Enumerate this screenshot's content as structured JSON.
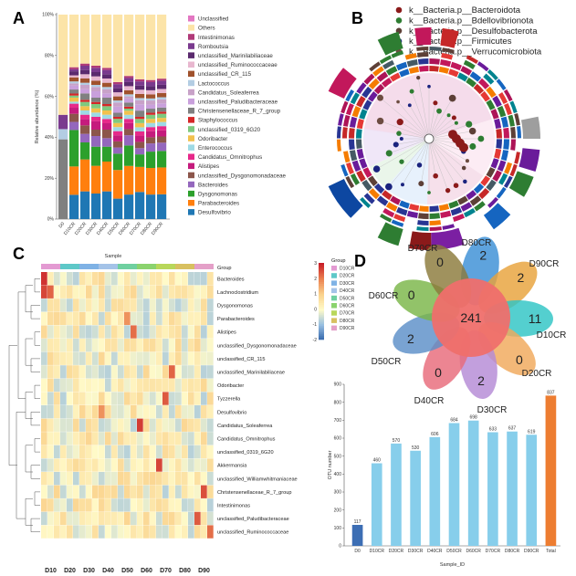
{
  "panels": {
    "a": "A",
    "b": "B",
    "c": "C",
    "d": "D"
  },
  "panel_a": {
    "y_label": "Relative abundance (%)",
    "x_label": "Sample",
    "y_ticks": [
      "0%",
      "20%",
      "40%",
      "60%",
      "80%",
      "100%"
    ],
    "samples": [
      "D0",
      "D10CR",
      "D20CR",
      "D30CR",
      "D40CR",
      "D50CR",
      "D60CR",
      "D70CR",
      "D80CR",
      "D90CR"
    ],
    "legend": [
      {
        "name": "Unclassified",
        "color": "#e377c2"
      },
      {
        "name": "Others",
        "color": "#fce4a8"
      },
      {
        "name": "Intestinimonas",
        "color": "#b03a78"
      },
      {
        "name": "Romboutsia",
        "color": "#7a3a8e"
      },
      {
        "name": "unclassified_Marinilabiliaceae",
        "color": "#5b2a6e"
      },
      {
        "name": "unclassified_Ruminococcaceae",
        "color": "#e8b7cf"
      },
      {
        "name": "unclassified_CR_115",
        "color": "#a0522d"
      },
      {
        "name": "Lactococcus",
        "color": "#b3cde3"
      },
      {
        "name": "Candidatus_Soleaferrea",
        "color": "#c8a2c8"
      },
      {
        "name": "unclassified_Paludibacteraceae",
        "color": "#c9a0dc"
      },
      {
        "name": "Christensenellaceae_R_7_group",
        "color": "#808080"
      },
      {
        "name": "Staphylococcus",
        "color": "#d62728"
      },
      {
        "name": "unclassified_0319_6G20",
        "color": "#7fc97f"
      },
      {
        "name": "Odoribacter",
        "color": "#f2c14e"
      },
      {
        "name": "Enterococcus",
        "color": "#9edae5"
      },
      {
        "name": "Candidatus_Omnitrophus",
        "color": "#e7298a"
      },
      {
        "name": "Alistipes",
        "color": "#c51b7d"
      },
      {
        "name": "unclassified_Dysgonomonadaceae",
        "color": "#8c564b"
      },
      {
        "name": "Bacteroides",
        "color": "#9467bd"
      },
      {
        "name": "Dysgonomonas",
        "color": "#2ca02c"
      },
      {
        "name": "Parabacteroides",
        "color": "#ff7f0e"
      },
      {
        "name": "Desulfovibrio",
        "color": "#1f77b4"
      }
    ]
  },
  "panel_b": {
    "legend": [
      {
        "name": "k__Bacteria.p__Bacteroidota",
        "color": "#8b1a1a"
      },
      {
        "name": "k__Bacteria.p__Bdellovibrionota",
        "color": "#2e7d32"
      },
      {
        "name": "k__Bacteria.p__Desulfobacterota",
        "color": "#5d4037"
      },
      {
        "name": "k__Bacteria.p__Firmicutes",
        "color": "#1a237e"
      },
      {
        "name": "k__Bacteria.p__Verrucomicrobiota",
        "color": "#6d4c41"
      }
    ]
  },
  "panel_c": {
    "legend_title": "Group",
    "row_labels": [
      "Bacteroides",
      "Lachnoclostridium",
      "Dysgonomonas",
      "Parabacteroides",
      "Alistipes",
      "unclassified_Dysgonomonadaceae",
      "unclassified_CR_115",
      "unclassified_Marinilabiliaceae",
      "Odoribacter",
      "Tyzzerella",
      "Desulfovibrio",
      "Candidatus_Soleaferrea",
      "Candidatus_Omnitrophus",
      "unclassified_0319_6G20",
      "Akkermansia",
      "unclassified_Williamwhitmaniaceae",
      "Christensenellaceae_R_7_group",
      "Intestinimonas",
      "unclassified_Paludibacteraceae",
      "unclassified_Ruminococcaceae"
    ],
    "group_labels": [
      "D10",
      "D20",
      "D30",
      "D40",
      "D50",
      "D60",
      "D70",
      "D80",
      "D90"
    ],
    "groups": [
      {
        "name": "D10CR",
        "color": "#e39ad2"
      },
      {
        "name": "D20CR",
        "color": "#5ec8c8"
      },
      {
        "name": "D30CR",
        "color": "#7fb2e5"
      },
      {
        "name": "D40CR",
        "color": "#a4c3e8"
      },
      {
        "name": "D50CR",
        "color": "#6fd0a0"
      },
      {
        "name": "D60CR",
        "color": "#8bd36e"
      },
      {
        "name": "D70CR",
        "color": "#b8d75a"
      },
      {
        "name": "D80CR",
        "color": "#d8c060"
      },
      {
        "name": "D90CR",
        "color": "#e4a0c8"
      }
    ],
    "scale_ticks": [
      "3",
      "2",
      "1",
      "0",
      "-1",
      "-2"
    ]
  },
  "panel_d": {
    "venn": {
      "center": "241",
      "petals": [
        {
          "name": "D80CR",
          "value": "2",
          "color": "#3a8fd6"
        },
        {
          "name": "D90CR",
          "value": "2",
          "color": "#e8a23a"
        },
        {
          "name": "D10CR",
          "value": "11",
          "color": "#2ec4c4"
        },
        {
          "name": "D20CR",
          "value": "0",
          "color": "#f0a85a"
        },
        {
          "name": "D30CR",
          "value": "2",
          "color": "#b48ad6"
        },
        {
          "name": "D40CR",
          "value": "0",
          "color": "#e86a7a"
        },
        {
          "name": "D50CR",
          "value": "2",
          "color": "#5b8fc8"
        },
        {
          "name": "D60CR",
          "value": "0",
          "color": "#7ab648"
        },
        {
          "name": "D70CR",
          "value": "0",
          "color": "#8b7a3a"
        }
      ]
    },
    "bar": {
      "y_label": "OTU number",
      "x_label": "Sample_ID",
      "y_ticks": [
        "0",
        "100",
        "200",
        "300",
        "400",
        "500",
        "600",
        "700",
        "800",
        "900"
      ]
    }
  },
  "chart_data": [
    {
      "type": "bar",
      "stacked": true,
      "panel": "A",
      "ylabel": "Relative abundance (%)",
      "xlabel": "Sample",
      "ylim": [
        0,
        100
      ],
      "categories": [
        "D0",
        "D10CR",
        "D20CR",
        "D30CR",
        "D40CR",
        "D50CR",
        "D60CR",
        "D70CR",
        "D80CR",
        "D90CR"
      ],
      "series": [
        {
          "name": "Desulfovibrio",
          "values": [
            0,
            12,
            13,
            12,
            13,
            10,
            12,
            13,
            12,
            12
          ]
        },
        {
          "name": "Parabacteroides",
          "values": [
            0,
            14,
            15,
            13,
            14,
            14,
            14,
            12,
            13,
            13
          ]
        },
        {
          "name": "Dysgonomonas",
          "values": [
            0,
            18,
            8,
            9,
            7,
            8,
            10,
            6,
            8,
            8
          ]
        },
        {
          "name": "Bacteroides",
          "values": [
            0,
            4,
            4,
            5,
            4,
            3,
            5,
            3,
            4,
            4
          ]
        },
        {
          "name": "unclassified_Dysgonomonadaceae",
          "values": [
            0,
            4,
            4,
            3,
            4,
            3,
            3,
            3,
            3,
            3
          ]
        },
        {
          "name": "Alistipes",
          "values": [
            0,
            3,
            3,
            4,
            3,
            3,
            3,
            3,
            3,
            3
          ]
        },
        {
          "name": "Candidatus_Omnitrophus",
          "values": [
            0,
            2,
            2,
            2,
            2,
            2,
            2,
            2,
            2,
            2
          ]
        },
        {
          "name": "Enterococcus",
          "values": [
            0,
            1,
            2,
            2,
            2,
            2,
            2,
            2,
            2,
            2
          ]
        },
        {
          "name": "Odoribacter",
          "values": [
            0,
            2,
            2,
            2,
            2,
            2,
            2,
            2,
            2,
            2
          ]
        },
        {
          "name": "unclassified_0319_6G20",
          "values": [
            0,
            1,
            2,
            2,
            2,
            2,
            1,
            2,
            2,
            2
          ]
        },
        {
          "name": "Staphylococcus",
          "values": [
            0,
            1,
            1,
            1,
            1,
            1,
            1,
            1,
            1,
            1
          ]
        },
        {
          "name": "Christensenellaceae_R_7_group",
          "values": [
            39,
            2,
            3,
            2,
            3,
            2,
            2,
            3,
            2,
            2
          ]
        },
        {
          "name": "unclassified_Paludibacteraceae",
          "values": [
            0,
            2,
            2,
            3,
            2,
            3,
            2,
            3,
            2,
            2
          ]
        },
        {
          "name": "Candidatus_Soleaferrea",
          "values": [
            0,
            1,
            2,
            2,
            2,
            2,
            1,
            2,
            2,
            2
          ]
        },
        {
          "name": "Lactococcus",
          "values": [
            5,
            1,
            1,
            1,
            1,
            1,
            1,
            1,
            1,
            1
          ]
        },
        {
          "name": "unclassified_CR_115",
          "values": [
            0,
            2,
            2,
            2,
            2,
            2,
            2,
            2,
            2,
            2
          ]
        },
        {
          "name": "unclassified_Ruminococcaceae",
          "values": [
            0,
            1,
            2,
            2,
            2,
            2,
            2,
            2,
            2,
            2
          ]
        },
        {
          "name": "unclassified_Marinilabiliaceae",
          "values": [
            0,
            2,
            2,
            2,
            2,
            2,
            2,
            2,
            2,
            2
          ]
        },
        {
          "name": "Romboutsia",
          "values": [
            7,
            1,
            2,
            2,
            2,
            2,
            2,
            2,
            2,
            2
          ]
        },
        {
          "name": "Intestinimonas",
          "values": [
            0,
            1,
            1,
            1,
            1,
            1,
            1,
            1,
            1,
            1
          ]
        },
        {
          "name": "Others",
          "values": [
            49,
            26,
            23,
            24,
            25,
            33,
            30,
            31,
            32,
            31
          ]
        },
        {
          "name": "Unclassified",
          "values": [
            0,
            0,
            0,
            0,
            0,
            0,
            0,
            0,
            0,
            0
          ]
        }
      ]
    },
    {
      "type": "bar",
      "panel": "D-bottom",
      "ylabel": "OTU number",
      "xlabel": "Sample_ID",
      "ylim": [
        0,
        900
      ],
      "categories": [
        "D0",
        "D10CR",
        "D20CR",
        "D30CR",
        "D40CR",
        "D50CR",
        "D60CR",
        "D70CR",
        "D80CR",
        "D90CR",
        "Total"
      ],
      "values": [
        117,
        460,
        570,
        530,
        606,
        684,
        698,
        633,
        637,
        619,
        837
      ],
      "colors": [
        "#3c6eb4",
        "#87ceeb",
        "#87ceeb",
        "#87ceeb",
        "#87ceeb",
        "#87ceeb",
        "#87ceeb",
        "#87ceeb",
        "#87ceeb",
        "#87ceeb",
        "#ed7d31"
      ]
    }
  ]
}
